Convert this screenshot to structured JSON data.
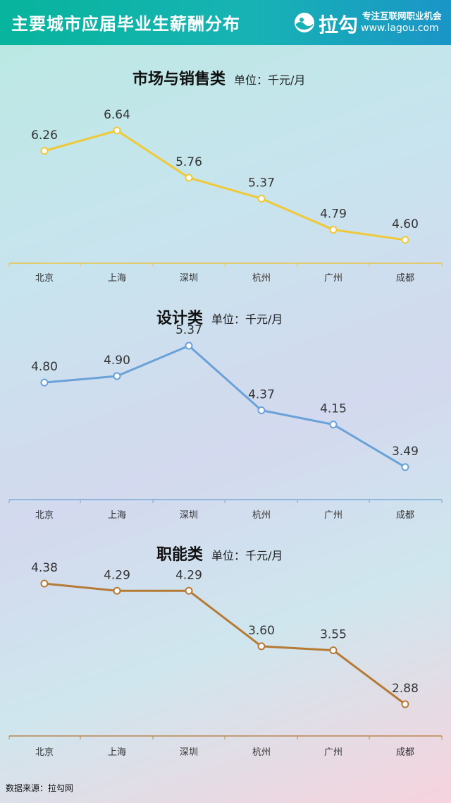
{
  "header": {
    "title": "主要城市应届毕业生薪酬分布",
    "logo_text": "拉勾",
    "slogan": "专注互联网职业机会",
    "site": "www.lagou.com"
  },
  "source": "数据来源：拉勾网",
  "colors": {
    "marketing": "#f0c93a",
    "design": "#6aa2d8",
    "function": "#b57a36"
  },
  "chart_data": [
    {
      "type": "line",
      "title": "市场与销售类",
      "unit": "单位：千元/月",
      "categories": [
        "北京",
        "上海",
        "深圳",
        "杭州",
        "广州",
        "成都"
      ],
      "values": [
        6.26,
        6.64,
        5.76,
        5.37,
        4.79,
        4.6
      ],
      "value_labels": [
        "6.26",
        "6.64",
        "5.76",
        "5.37",
        "4.79",
        "4.60"
      ],
      "grid": false,
      "legend": "none"
    },
    {
      "type": "line",
      "title": "设计类",
      "unit": "单位：千元/月",
      "categories": [
        "北京",
        "上海",
        "深圳",
        "杭州",
        "广州",
        "成都"
      ],
      "values": [
        4.8,
        4.9,
        5.37,
        4.37,
        4.15,
        3.49
      ],
      "value_labels": [
        "4.80",
        "4.90",
        "5.37",
        "4.37",
        "4.15",
        "3.49"
      ],
      "grid": false,
      "legend": "none"
    },
    {
      "type": "line",
      "title": "职能类",
      "unit": "单位：千元/月",
      "categories": [
        "北京",
        "上海",
        "深圳",
        "杭州",
        "广州",
        "成都"
      ],
      "values": [
        4.38,
        4.29,
        4.29,
        3.6,
        3.55,
        2.88
      ],
      "value_labels": [
        "4.38",
        "4.29",
        "4.29",
        "3.60",
        "3.55",
        "2.88"
      ],
      "grid": false,
      "legend": "none"
    }
  ]
}
